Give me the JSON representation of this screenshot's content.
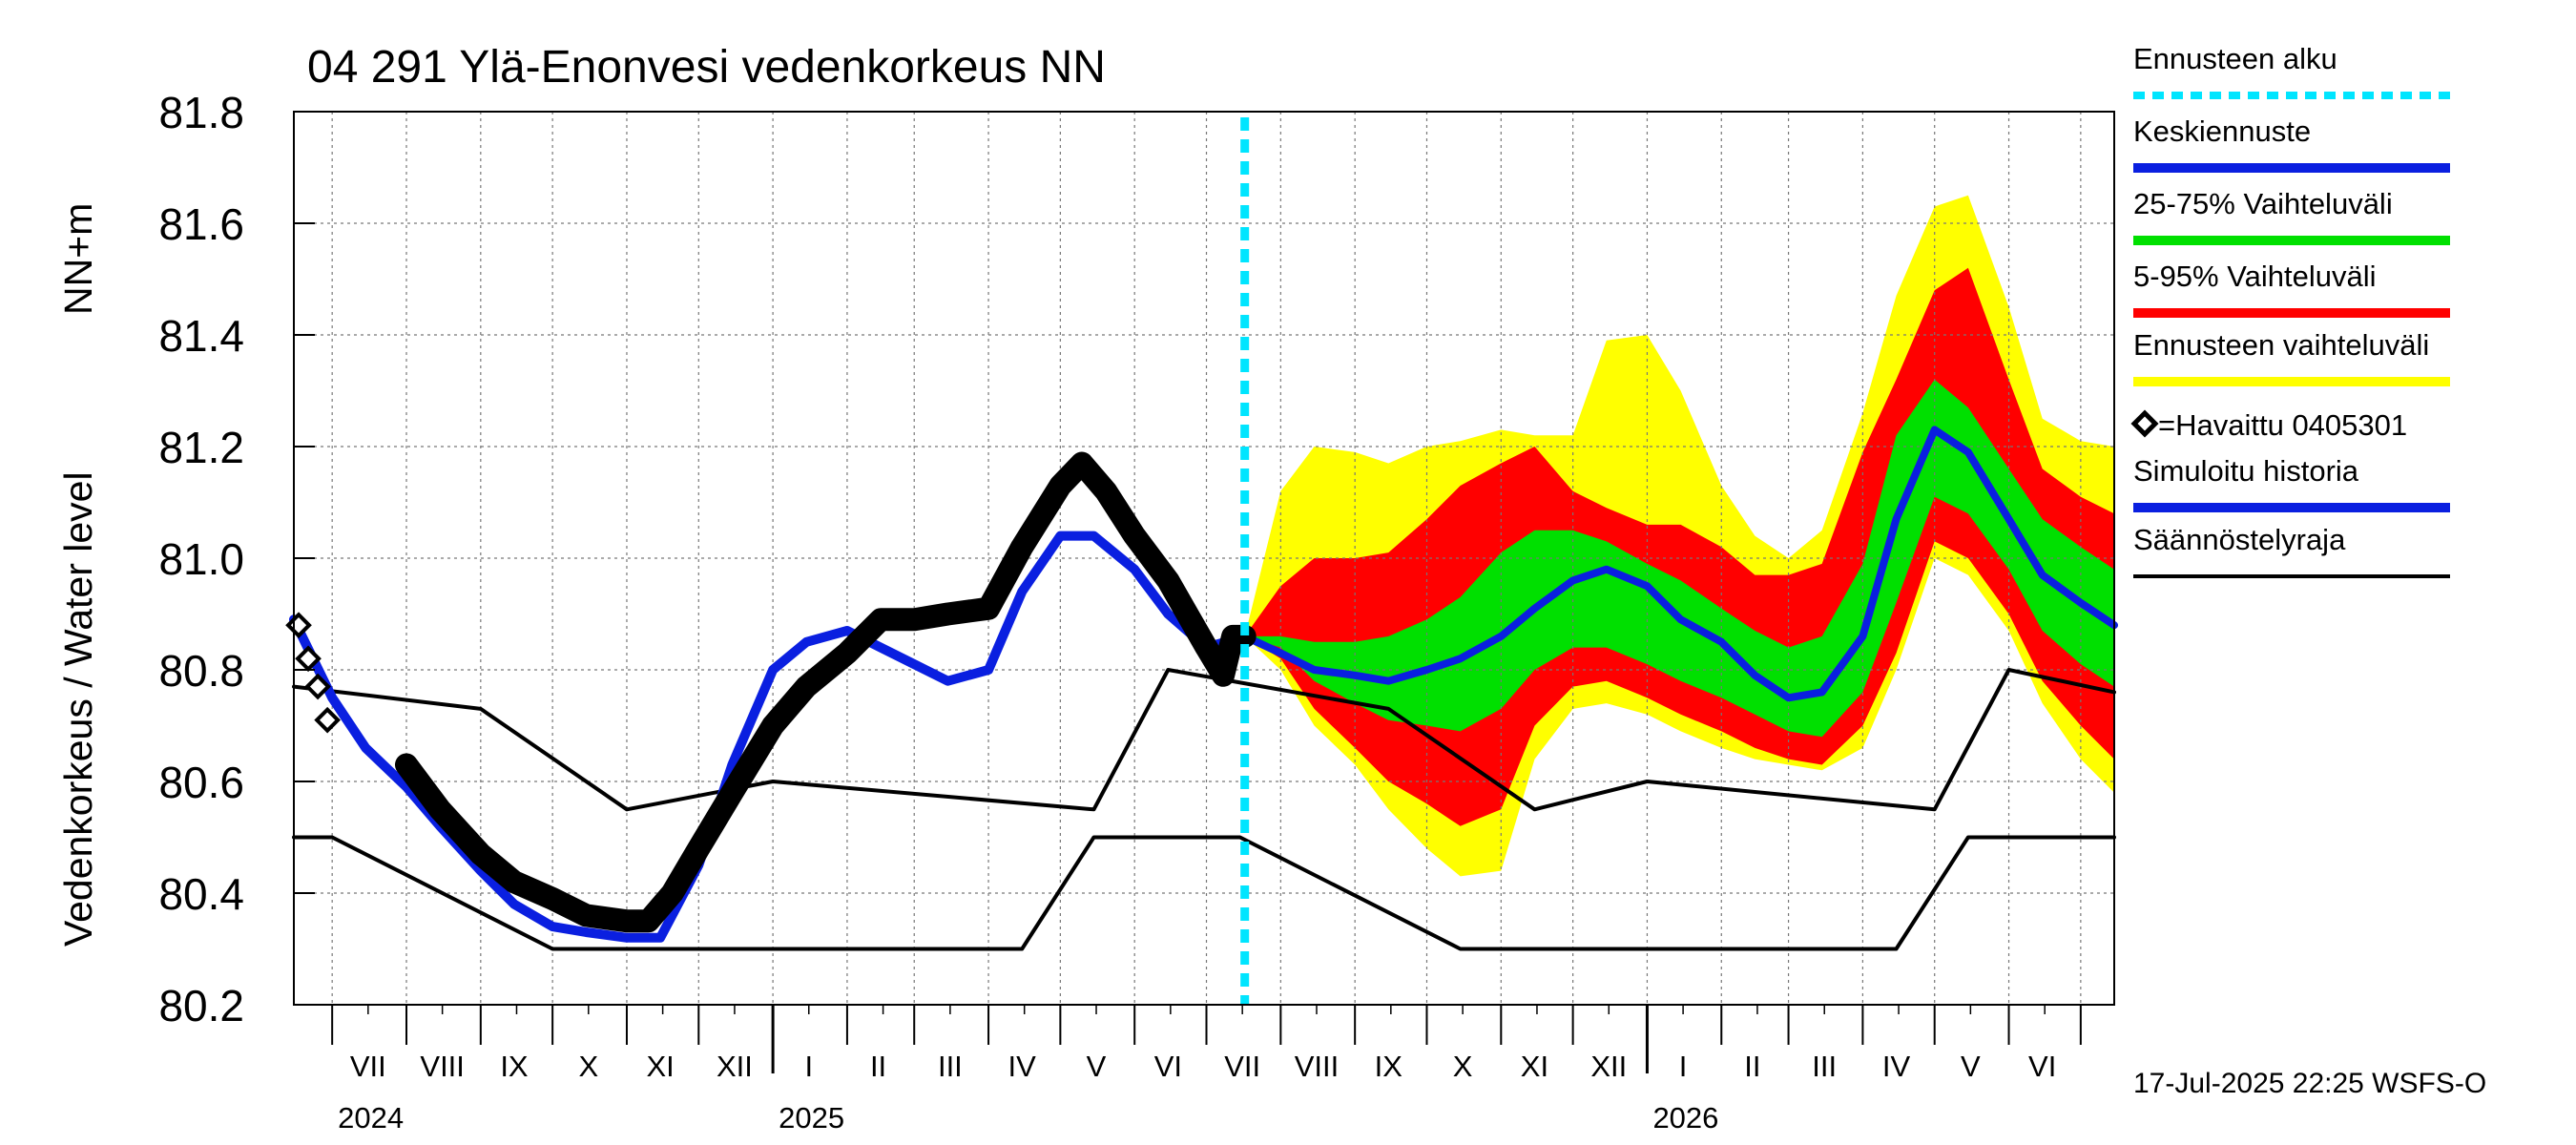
{
  "chart_data": {
    "type": "line",
    "title": "04 291 Ylä-Enonvesi vedenkorkeus NN",
    "ylabel": "Vedenkorkeus / Water level",
    "yunit": "NN+m",
    "ylim": [
      80.2,
      81.8
    ],
    "yticks": [
      "80.2",
      "80.4",
      "80.6",
      "80.8",
      "81.0",
      "81.2",
      "81.4",
      "81.6",
      "81.8"
    ],
    "xlim": [
      "2024-06-15",
      "2026-07-15"
    ],
    "grid": true,
    "legend_position": "right",
    "month_labels": [
      {
        "label": "VII",
        "date": "2024-07-16"
      },
      {
        "label": "VIII",
        "date": "2024-08-16"
      },
      {
        "label": "IX",
        "date": "2024-09-15"
      },
      {
        "label": "X",
        "date": "2024-10-16"
      },
      {
        "label": "XI",
        "date": "2024-11-15"
      },
      {
        "label": "XII",
        "date": "2024-12-16"
      },
      {
        "label": "I",
        "date": "2025-01-16"
      },
      {
        "label": "II",
        "date": "2025-02-14"
      },
      {
        "label": "III",
        "date": "2025-03-16"
      },
      {
        "label": "IV",
        "date": "2025-04-15"
      },
      {
        "label": "V",
        "date": "2025-05-16"
      },
      {
        "label": "VI",
        "date": "2025-06-15"
      },
      {
        "label": "VII",
        "date": "2025-07-16"
      },
      {
        "label": "VIII",
        "date": "2025-08-16"
      },
      {
        "label": "IX",
        "date": "2025-09-15"
      },
      {
        "label": "X",
        "date": "2025-10-16"
      },
      {
        "label": "XI",
        "date": "2025-11-15"
      },
      {
        "label": "XII",
        "date": "2025-12-16"
      },
      {
        "label": "I",
        "date": "2026-01-16"
      },
      {
        "label": "II",
        "date": "2026-02-14"
      },
      {
        "label": "III",
        "date": "2026-03-16"
      },
      {
        "label": "IV",
        "date": "2026-04-15"
      },
      {
        "label": "V",
        "date": "2026-05-16"
      },
      {
        "label": "VI",
        "date": "2026-06-15"
      }
    ],
    "year_labels": [
      {
        "label": "2024",
        "date": "2024-07-01"
      },
      {
        "label": "2025",
        "date": "2025-01-01"
      },
      {
        "label": "2026",
        "date": "2026-01-01"
      }
    ],
    "forecast_start": "2025-07-17",
    "legend": [
      {
        "label": "Ennusteen alku",
        "color": "#00e5ff",
        "style": "dotted"
      },
      {
        "label": "Keskiennuste",
        "color": "#0a1fe0",
        "style": "line"
      },
      {
        "label": "25-75% Vaihteluväli",
        "color": "#00e000",
        "style": "line"
      },
      {
        "label": "5-95% Vaihteluväli",
        "color": "#ff0000",
        "style": "line"
      },
      {
        "label": "Ennusteen vaihteluväli",
        "color": "#ffff00",
        "style": "line"
      },
      {
        "label": "=Havaittu 0405301",
        "color": "#000000",
        "style": "diamond"
      },
      {
        "label": "Simuloitu historia",
        "color": "#0a1fe0",
        "style": "line"
      },
      {
        "label": "Säännöstelyraja",
        "color": "#000000",
        "style": "thin"
      }
    ],
    "colors": {
      "forecast_start": "#00e5ff",
      "median": "#0a1fe0",
      "band_25_75": "#00e000",
      "band_5_95": "#ff0000",
      "band_full": "#ffff00",
      "observed": "#000000",
      "simulated": "#0a1fe0",
      "regulation": "#000000"
    },
    "series": {
      "forecast_band": {
        "x": [
          "2025-07-17",
          "2025-08-01",
          "2025-08-15",
          "2025-09-01",
          "2025-09-15",
          "2025-10-01",
          "2025-10-15",
          "2025-11-01",
          "2025-11-15",
          "2025-12-01",
          "2025-12-15",
          "2026-01-01",
          "2026-01-15",
          "2026-02-01",
          "2026-02-15",
          "2026-03-01",
          "2026-03-15",
          "2026-04-01",
          "2026-04-15",
          "2026-05-01",
          "2026-05-15",
          "2026-06-01",
          "2026-06-15",
          "2026-07-01",
          "2026-07-15"
        ],
        "p_full_low": [
          80.86,
          80.8,
          80.7,
          80.63,
          80.55,
          80.48,
          80.43,
          80.44,
          80.64,
          80.73,
          80.74,
          80.72,
          80.69,
          80.66,
          80.64,
          80.63,
          80.62,
          80.66,
          80.8,
          81.0,
          80.97,
          80.87,
          80.74,
          80.64,
          80.58
        ],
        "p5": [
          80.86,
          80.82,
          80.73,
          80.66,
          80.6,
          80.56,
          80.52,
          80.55,
          80.7,
          80.77,
          80.78,
          80.75,
          80.72,
          80.69,
          80.66,
          80.64,
          80.63,
          80.7,
          80.83,
          81.03,
          81.0,
          80.9,
          80.78,
          80.7,
          80.64
        ],
        "p25": [
          80.86,
          80.84,
          80.78,
          80.74,
          80.71,
          80.7,
          80.69,
          80.73,
          80.8,
          80.84,
          80.84,
          80.81,
          80.78,
          80.75,
          80.72,
          80.69,
          80.68,
          80.76,
          80.92,
          81.11,
          81.08,
          80.98,
          80.87,
          80.81,
          80.77
        ],
        "median": [
          80.86,
          80.83,
          80.8,
          80.79,
          80.78,
          80.8,
          80.82,
          80.86,
          80.91,
          80.96,
          80.98,
          80.95,
          80.89,
          80.85,
          80.79,
          80.75,
          80.76,
          80.86,
          81.07,
          81.23,
          81.19,
          81.07,
          80.97,
          80.92,
          80.88
        ],
        "p75": [
          80.86,
          80.86,
          80.85,
          80.85,
          80.86,
          80.89,
          80.93,
          81.01,
          81.05,
          81.05,
          81.03,
          80.99,
          80.96,
          80.91,
          80.87,
          80.84,
          80.86,
          80.99,
          81.22,
          81.32,
          81.27,
          81.16,
          81.07,
          81.02,
          80.98
        ],
        "p95": [
          80.86,
          80.95,
          81.0,
          81.0,
          81.01,
          81.07,
          81.13,
          81.17,
          81.2,
          81.12,
          81.09,
          81.06,
          81.06,
          81.02,
          80.97,
          80.97,
          80.99,
          81.19,
          81.32,
          81.48,
          81.52,
          81.32,
          81.16,
          81.11,
          81.08
        ],
        "p_full_high": [
          80.86,
          81.12,
          81.2,
          81.19,
          81.17,
          81.2,
          81.21,
          81.23,
          81.22,
          81.22,
          81.39,
          81.4,
          81.3,
          81.13,
          81.04,
          81.0,
          81.05,
          81.26,
          81.47,
          81.63,
          81.65,
          81.45,
          81.25,
          81.21,
          81.2
        ]
      },
      "observed": {
        "x": [
          "2024-06-17",
          "2024-06-21",
          "2024-06-25",
          "2024-06-29",
          "2024-08-01",
          "2024-08-15",
          "2024-09-01",
          "2024-09-15",
          "2024-10-01",
          "2024-10-15",
          "2024-11-01",
          "2024-11-10",
          "2024-11-20",
          "2024-12-01",
          "2024-12-15",
          "2025-01-01",
          "2025-01-15",
          "2025-02-01",
          "2025-02-15",
          "2025-03-01",
          "2025-03-15",
          "2025-04-01",
          "2025-04-15",
          "2025-05-01",
          "2025-05-10",
          "2025-05-20",
          "2025-06-01",
          "2025-06-15",
          "2025-07-01",
          "2025-07-08",
          "2025-07-12",
          "2025-07-17"
        ],
        "y": [
          80.88,
          80.82,
          80.77,
          80.71,
          80.63,
          80.55,
          80.47,
          80.42,
          80.39,
          80.36,
          80.35,
          80.35,
          80.4,
          80.48,
          80.58,
          80.7,
          80.77,
          80.83,
          80.89,
          80.89,
          80.9,
          80.91,
          81.02,
          81.13,
          81.17,
          81.12,
          81.04,
          80.96,
          80.84,
          80.79,
          80.86,
          80.86
        ]
      },
      "simulated": {
        "x": [
          "2024-06-15",
          "2024-07-01",
          "2024-07-15",
          "2024-08-01",
          "2024-08-15",
          "2024-09-01",
          "2024-09-15",
          "2024-10-01",
          "2024-10-15",
          "2024-11-01",
          "2024-11-15",
          "2024-12-01",
          "2024-12-15",
          "2025-01-01",
          "2025-01-15",
          "2025-02-01",
          "2025-02-15",
          "2025-03-01",
          "2025-03-15",
          "2025-04-01",
          "2025-04-15",
          "2025-05-01",
          "2025-05-15",
          "2025-06-01",
          "2025-06-15",
          "2025-07-01",
          "2025-07-17"
        ],
        "y": [
          80.89,
          80.75,
          80.66,
          80.59,
          80.52,
          80.44,
          80.38,
          80.34,
          80.33,
          80.32,
          80.32,
          80.45,
          80.63,
          80.8,
          80.85,
          80.87,
          80.84,
          80.81,
          80.78,
          80.8,
          80.94,
          81.04,
          81.04,
          80.98,
          80.9,
          80.84,
          80.86
        ]
      },
      "regulation_upper": {
        "x": [
          "2024-06-15",
          "2024-09-01",
          "2024-11-01",
          "2025-01-01",
          "2025-05-15",
          "2025-06-15",
          "2025-09-15",
          "2025-11-15",
          "2026-01-01",
          "2026-05-01",
          "2026-06-01",
          "2026-07-15"
        ],
        "y": [
          80.77,
          80.73,
          80.55,
          80.6,
          80.55,
          80.8,
          80.73,
          80.55,
          80.6,
          80.55,
          80.8,
          80.76
        ]
      },
      "regulation_lower": {
        "x": [
          "2024-06-15",
          "2024-07-01",
          "2024-10-01",
          "2025-04-15",
          "2025-05-15",
          "2025-07-15",
          "2025-10-15",
          "2026-04-15",
          "2026-05-15",
          "2026-07-15"
        ],
        "y": [
          80.5,
          80.5,
          80.3,
          80.3,
          80.5,
          80.5,
          80.3,
          80.3,
          80.5,
          80.5
        ]
      }
    }
  },
  "footer": {
    "timestamp": "17-Jul-2025 22:25 WSFS-O"
  }
}
